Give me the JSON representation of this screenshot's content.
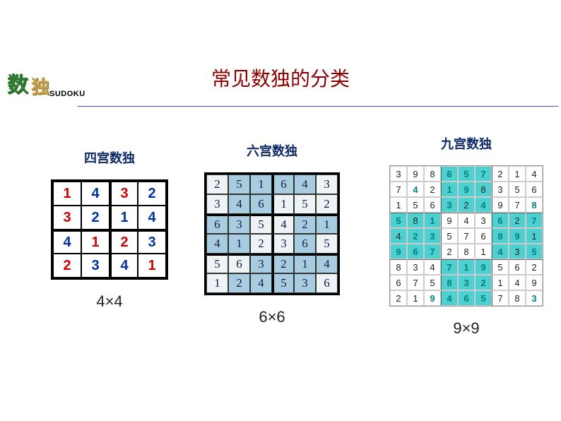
{
  "title": "常见数独的分类",
  "logo": {
    "char1": "数",
    "char2": "独",
    "text": "SUDOKU"
  },
  "four": {
    "subtitle": "四宫数独",
    "caption": "4×4",
    "grid": [
      [
        {
          "v": "1",
          "c": "c-red"
        },
        {
          "v": "4",
          "c": "c-blue"
        },
        {
          "v": "3",
          "c": "c-red"
        },
        {
          "v": "2",
          "c": "c-blue"
        }
      ],
      [
        {
          "v": "3",
          "c": "c-red"
        },
        {
          "v": "2",
          "c": "c-blue"
        },
        {
          "v": "1",
          "c": "c-blue"
        },
        {
          "v": "4",
          "c": "c-blue"
        }
      ],
      [
        {
          "v": "4",
          "c": "c-blue"
        },
        {
          "v": "1",
          "c": "c-red"
        },
        {
          "v": "2",
          "c": "c-red"
        },
        {
          "v": "3",
          "c": "c-blue"
        }
      ],
      [
        {
          "v": "2",
          "c": "c-red"
        },
        {
          "v": "3",
          "c": "c-blue"
        },
        {
          "v": "4",
          "c": "c-blue"
        },
        {
          "v": "1",
          "c": "c-red"
        }
      ]
    ],
    "thickRowAt": 2,
    "thickColAt": 2
  },
  "six": {
    "subtitle": "六宫数独",
    "caption": "6×6",
    "grid": [
      [
        {
          "v": "2"
        },
        {
          "v": "5",
          "h": true
        },
        {
          "v": "1",
          "h": true
        },
        {
          "v": "6",
          "h": true
        },
        {
          "v": "4",
          "h": true
        },
        {
          "v": "3"
        }
      ],
      [
        {
          "v": "3"
        },
        {
          "v": "4",
          "h": true
        },
        {
          "v": "6",
          "h": true
        },
        {
          "v": "1"
        },
        {
          "v": "5"
        },
        {
          "v": "2"
        }
      ],
      [
        {
          "v": "6",
          "h": true
        },
        {
          "v": "3",
          "h": true
        },
        {
          "v": "5"
        },
        {
          "v": "4"
        },
        {
          "v": "2",
          "h": true
        },
        {
          "v": "1",
          "h": true
        }
      ],
      [
        {
          "v": "4",
          "h": true
        },
        {
          "v": "1",
          "h": true
        },
        {
          "v": "2"
        },
        {
          "v": "3"
        },
        {
          "v": "6",
          "h": true
        },
        {
          "v": "5"
        }
      ],
      [
        {
          "v": "5"
        },
        {
          "v": "6"
        },
        {
          "v": "3",
          "h": true
        },
        {
          "v": "2",
          "h": true
        },
        {
          "v": "1",
          "h": true
        },
        {
          "v": "4",
          "h": true
        }
      ],
      [
        {
          "v": "1"
        },
        {
          "v": "2",
          "h": true
        },
        {
          "v": "4",
          "h": true
        },
        {
          "v": "5",
          "h": true
        },
        {
          "v": "3",
          "h": true
        },
        {
          "v": "6"
        }
      ]
    ],
    "thickRowsAt": [
      2,
      4
    ],
    "thickColAt": 3
  },
  "nine": {
    "subtitle": "九宫数独",
    "caption": "9×9",
    "grid": [
      [
        {
          "v": "3"
        },
        {
          "v": "9"
        },
        {
          "v": "8"
        },
        {
          "v": "6",
          "h": true,
          "t": true
        },
        {
          "v": "5",
          "h": true,
          "t": true
        },
        {
          "v": "7",
          "h": true,
          "t": true
        },
        {
          "v": "2"
        },
        {
          "v": "1"
        },
        {
          "v": "4"
        }
      ],
      [
        {
          "v": "7"
        },
        {
          "v": "4",
          "t": true
        },
        {
          "v": "2"
        },
        {
          "v": "1",
          "h": true,
          "t": true
        },
        {
          "v": "9",
          "h": true,
          "t": true
        },
        {
          "v": "8",
          "h": true
        },
        {
          "v": "3"
        },
        {
          "v": "5"
        },
        {
          "v": "6"
        }
      ],
      [
        {
          "v": "1"
        },
        {
          "v": "5"
        },
        {
          "v": "6"
        },
        {
          "v": "3",
          "h": true,
          "t": true
        },
        {
          "v": "2",
          "h": true
        },
        {
          "v": "4",
          "h": true,
          "t": true
        },
        {
          "v": "9"
        },
        {
          "v": "7"
        },
        {
          "v": "8",
          "t": true
        }
      ],
      [
        {
          "v": "5",
          "h": true,
          "t": true
        },
        {
          "v": "8",
          "h": true
        },
        {
          "v": "1",
          "h": true,
          "t": true
        },
        {
          "v": "9"
        },
        {
          "v": "4"
        },
        {
          "v": "3"
        },
        {
          "v": "6",
          "h": true,
          "t": true
        },
        {
          "v": "2",
          "h": true
        },
        {
          "v": "7",
          "h": true,
          "t": true
        }
      ],
      [
        {
          "v": "4",
          "h": true
        },
        {
          "v": "2",
          "h": true,
          "t": true
        },
        {
          "v": "3",
          "h": true,
          "t": true
        },
        {
          "v": "5"
        },
        {
          "v": "7"
        },
        {
          "v": "6"
        },
        {
          "v": "8",
          "h": true,
          "t": true
        },
        {
          "v": "9",
          "h": true,
          "t": true
        },
        {
          "v": "1",
          "h": true
        }
      ],
      [
        {
          "v": "9",
          "h": true,
          "t": true
        },
        {
          "v": "6",
          "h": true,
          "t": true
        },
        {
          "v": "7",
          "h": true,
          "t": true
        },
        {
          "v": "2"
        },
        {
          "v": "8"
        },
        {
          "v": "1"
        },
        {
          "v": "4",
          "h": true,
          "t": true
        },
        {
          "v": "3",
          "h": true
        },
        {
          "v": "5",
          "h": true,
          "t": true
        }
      ],
      [
        {
          "v": "8"
        },
        {
          "v": "3"
        },
        {
          "v": "4"
        },
        {
          "v": "7",
          "h": true,
          "t": true
        },
        {
          "v": "1",
          "h": true,
          "t": true
        },
        {
          "v": "9",
          "h": true,
          "t": true
        },
        {
          "v": "5"
        },
        {
          "v": "6"
        },
        {
          "v": "2"
        }
      ],
      [
        {
          "v": "6"
        },
        {
          "v": "7"
        },
        {
          "v": "5"
        },
        {
          "v": "8",
          "h": true,
          "t": true
        },
        {
          "v": "3",
          "h": true,
          "t": true
        },
        {
          "v": "2",
          "h": true,
          "t": true
        },
        {
          "v": "1"
        },
        {
          "v": "4"
        },
        {
          "v": "9"
        }
      ],
      [
        {
          "v": "2"
        },
        {
          "v": "1"
        },
        {
          "v": "9",
          "t": true
        },
        {
          "v": "4",
          "h": true,
          "t": true
        },
        {
          "v": "6",
          "h": true,
          "t": true
        },
        {
          "v": "5",
          "h": true,
          "t": true
        },
        {
          "v": "7"
        },
        {
          "v": "8"
        },
        {
          "v": "3",
          "t": true
        }
      ]
    ],
    "thickRowsAt": [
      3,
      6
    ],
    "thickColsAt": [
      3,
      6
    ]
  }
}
